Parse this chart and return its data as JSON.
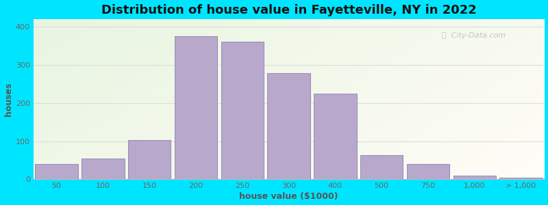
{
  "title": "Distribution of house value in Fayetteville, NY in 2022",
  "xlabel": "house value ($1000)",
  "ylabel": "houses",
  "bar_color": "#b8a8cc",
  "bar_edge_color": "#9888bb",
  "background_outer": "#00e5ff",
  "ylim": [
    0,
    420
  ],
  "yticks": [
    0,
    100,
    200,
    300,
    400
  ],
  "bar_labels": [
    "50",
    "100",
    "150",
    "200",
    "250",
    "300",
    "400",
    "500",
    "750",
    "1,000",
    "> 1,000"
  ],
  "bar_heights": [
    40,
    55,
    103,
    375,
    360,
    278,
    225,
    63,
    40,
    10,
    5
  ],
  "title_fontsize": 13,
  "axis_label_fontsize": 9,
  "tick_fontsize": 8,
  "watermark_text": "City-Data.com",
  "grid_color": "#dddddd",
  "title_color": "#111111"
}
